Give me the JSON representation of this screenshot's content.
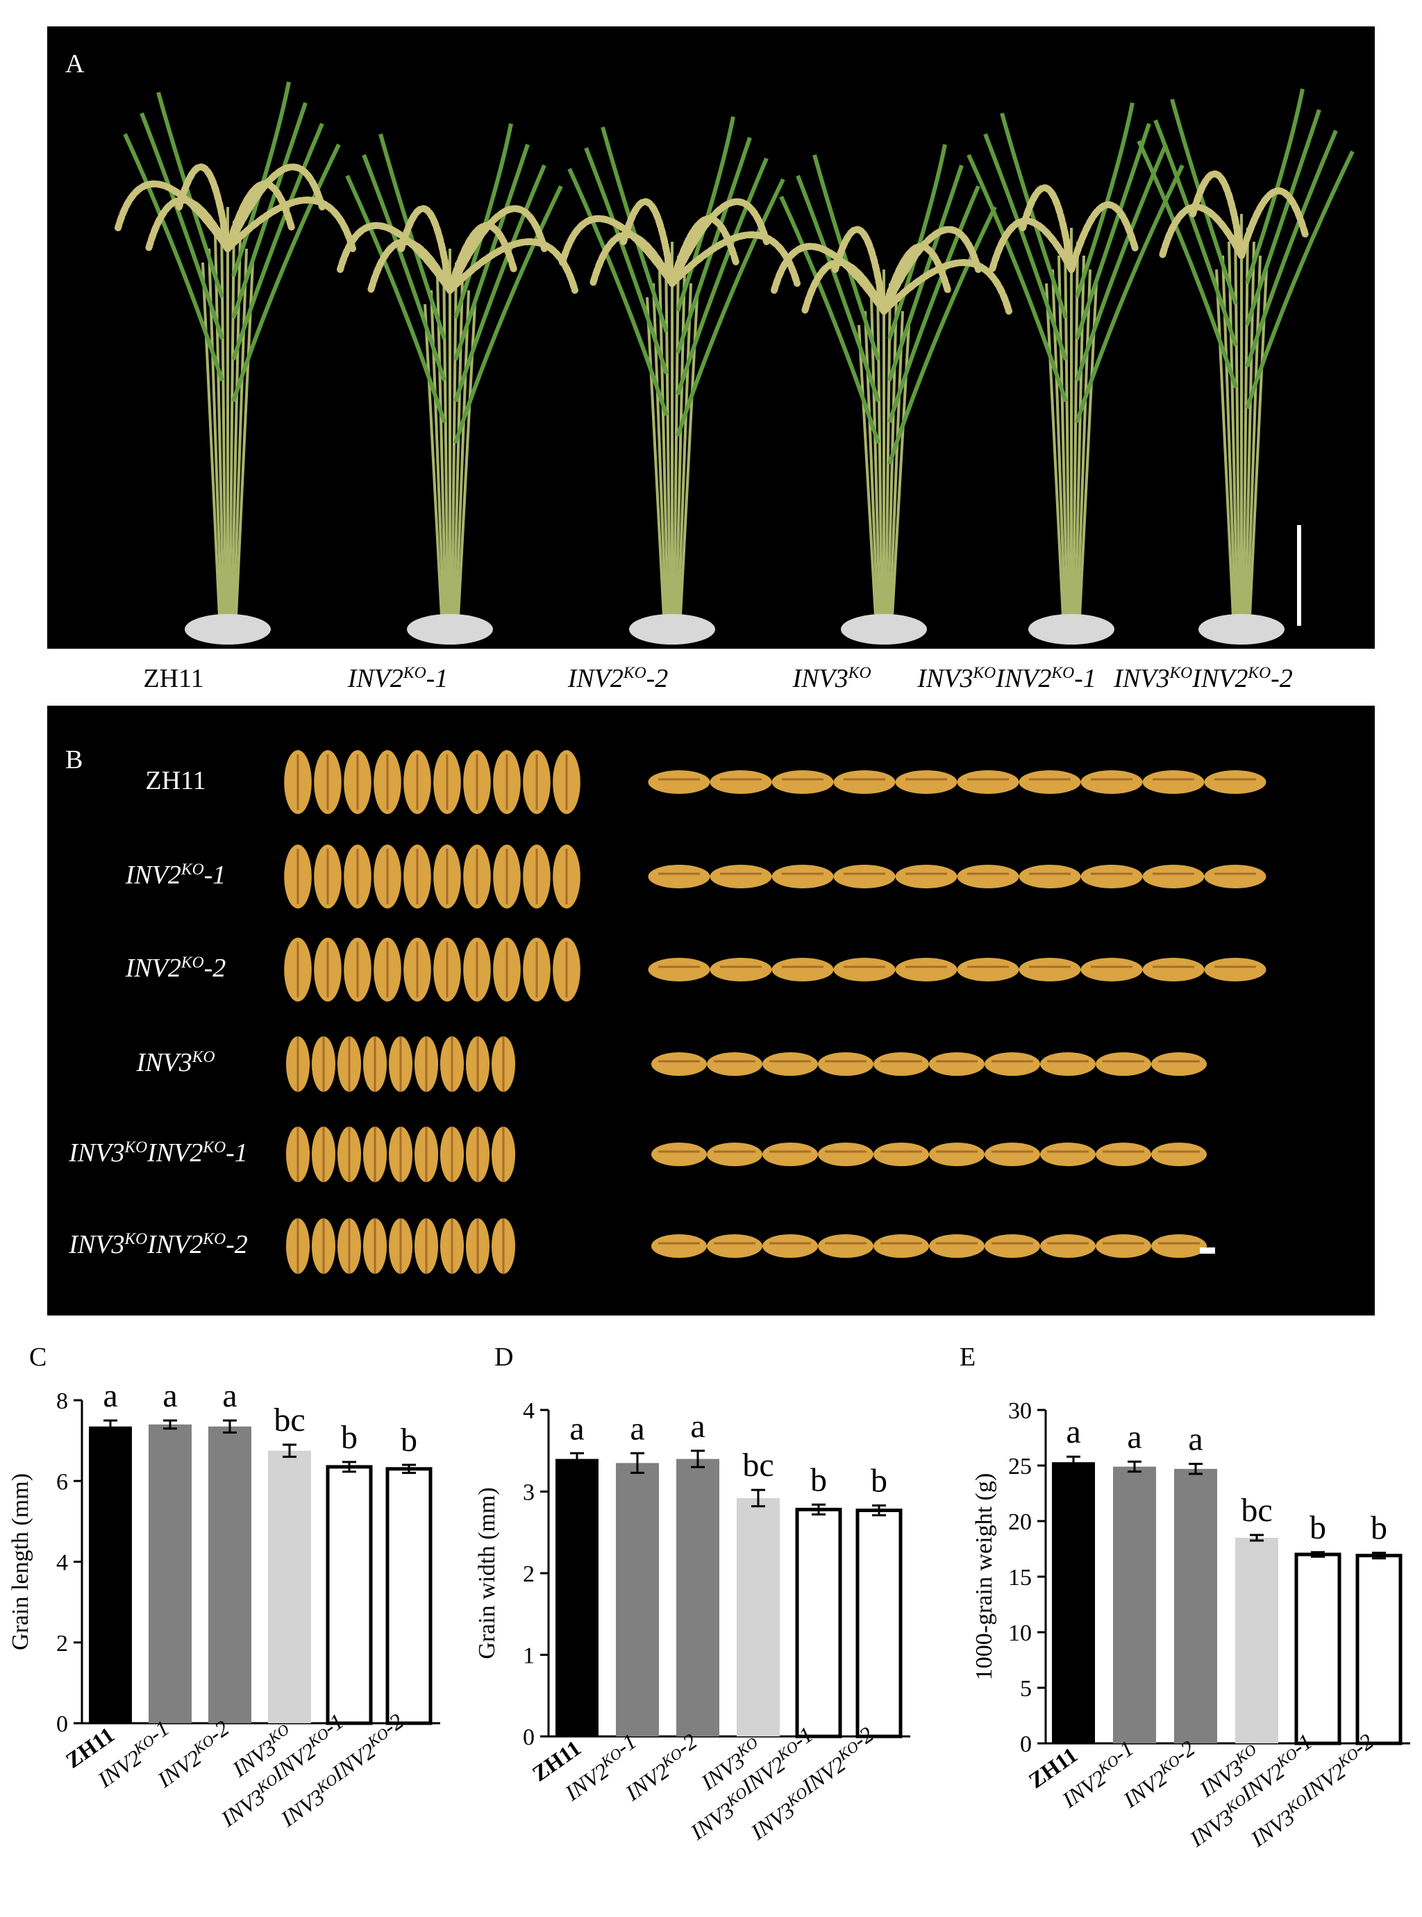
{
  "panels": {
    "a": {
      "letter": "A"
    },
    "b": {
      "letter": "B"
    },
    "c": {
      "letter": "C"
    },
    "d": {
      "letter": "D"
    },
    "e": {
      "letter": "E"
    }
  },
  "genotypes": [
    {
      "base": "ZH11",
      "italic": false,
      "parts": [
        [
          "ZH11",
          ""
        ]
      ],
      "suffix": ""
    },
    {
      "base": "INV2",
      "italic": true,
      "parts": [
        [
          "INV2",
          "KO"
        ]
      ],
      "suffix": "-1"
    },
    {
      "base": "INV2",
      "italic": true,
      "parts": [
        [
          "INV2",
          "KO"
        ]
      ],
      "suffix": "-2"
    },
    {
      "base": "INV3",
      "italic": true,
      "parts": [
        [
          "INV3",
          "KO"
        ]
      ],
      "suffix": ""
    },
    {
      "base": "INV3INV2",
      "italic": true,
      "parts": [
        [
          "INV3",
          "KO"
        ],
        [
          "INV2",
          "KO"
        ]
      ],
      "suffix": "-1"
    },
    {
      "base": "INV3INV2",
      "italic": true,
      "parts": [
        [
          "INV3",
          "KO"
        ],
        [
          "INV2",
          "KO"
        ]
      ],
      "suffix": "-2"
    }
  ],
  "photo": {
    "plant_colors": {
      "panicle": "#c9c27a",
      "stem": "#a8b36a",
      "leaf": "#5f9a3e",
      "pot": "#d8d8d8"
    },
    "grain_colors": {
      "hull": "#d9a441",
      "stripe": "#8a4a1e"
    },
    "grain_counts": [
      10,
      10,
      10,
      9,
      9,
      9
    ]
  },
  "chart_data": [
    {
      "type": "bar",
      "panel": "C",
      "ylabel": "Grain length (mm)",
      "ylim": [
        0,
        8
      ],
      "yticks": [
        0,
        2,
        4,
        6,
        8
      ],
      "categories": [
        "ZH11",
        "INV2KO-1",
        "INV2KO-2",
        "INV3KO",
        "INV3KOINV2KO-1",
        "INV3KOINV2KO-2"
      ],
      "values": [
        7.35,
        7.4,
        7.35,
        6.75,
        6.35,
        6.3
      ],
      "errors": [
        0.15,
        0.1,
        0.15,
        0.15,
        0.12,
        0.1
      ],
      "letters": [
        "a",
        "a",
        "a",
        "bc",
        "b",
        "b"
      ],
      "bar_colors": [
        "#000000",
        "#808080",
        "#808080",
        "#d3d3d3",
        "#ffffff",
        "#ffffff"
      ]
    },
    {
      "type": "bar",
      "panel": "D",
      "ylabel": "Grain width (mm)",
      "ylim": [
        0,
        4
      ],
      "yticks": [
        0,
        1,
        2,
        3,
        4
      ],
      "categories": [
        "ZH11",
        "INV2KO-1",
        "INV2KO-2",
        "INV3KO",
        "INV3KOINV2KO-1",
        "INV3KOINV2KO-2"
      ],
      "values": [
        3.4,
        3.35,
        3.4,
        2.92,
        2.78,
        2.77
      ],
      "errors": [
        0.07,
        0.12,
        0.1,
        0.1,
        0.06,
        0.06
      ],
      "letters": [
        "a",
        "a",
        "a",
        "bc",
        "b",
        "b"
      ],
      "bar_colors": [
        "#000000",
        "#808080",
        "#808080",
        "#d3d3d3",
        "#ffffff",
        "#ffffff"
      ]
    },
    {
      "type": "bar",
      "panel": "E",
      "ylabel": "1000-grain weight (g)",
      "ylim": [
        0,
        30
      ],
      "yticks": [
        0,
        5,
        10,
        15,
        20,
        25,
        30
      ],
      "categories": [
        "ZH11",
        "INV2KO-1",
        "INV2KO-2",
        "INV3KO",
        "INV3KOINV2KO-1",
        "INV3KOINV2KO-2"
      ],
      "values": [
        25.3,
        24.9,
        24.7,
        18.5,
        17.0,
        16.9
      ],
      "errors": [
        0.5,
        0.45,
        0.45,
        0.25,
        0.2,
        0.25
      ],
      "letters": [
        "a",
        "a",
        "a",
        "bc",
        "b",
        "b"
      ],
      "bar_colors": [
        "#000000",
        "#808080",
        "#808080",
        "#d3d3d3",
        "#ffffff",
        "#ffffff"
      ]
    }
  ]
}
